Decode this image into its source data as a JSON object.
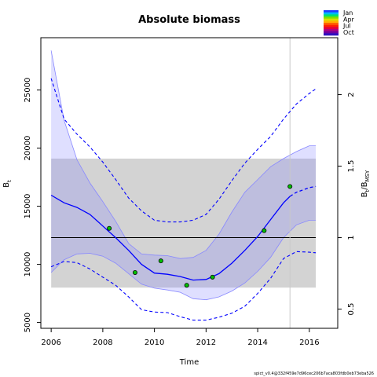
{
  "chart_data": {
    "type": "line",
    "title": "Absolute biomass",
    "xlabel": "Time",
    "ylabel_left": "B",
    "ylabel_left_sub": "t",
    "ylabel_right_parts": [
      "B",
      "t",
      "/B",
      "MSY"
    ],
    "xlim": [
      2005.6,
      2017.1
    ],
    "ylim": [
      4500,
      29500
    ],
    "x_ticks": [
      "2006",
      "2008",
      "2010",
      "2012",
      "2014",
      "2016"
    ],
    "x_tick_values": [
      2006,
      2008,
      2010,
      2012,
      2014,
      2016
    ],
    "y_ticks": [
      "5000",
      "10000",
      "15000",
      "20000",
      "25000"
    ],
    "y_tick_values": [
      5000,
      10000,
      15000,
      20000,
      25000
    ],
    "y2_ticks": [
      "0.5",
      "1",
      "1.5",
      "2"
    ],
    "y2_tick_values": [
      0.5,
      1,
      1.5,
      2
    ],
    "bmsy": 12300,
    "bmsy_band": [
      8000,
      19100
    ],
    "vline_x": 2015.25,
    "estimate": {
      "x": [
        2006,
        2006.5,
        2007,
        2007.5,
        2008,
        2008.5,
        2009,
        2009.5,
        2010,
        2010.5,
        2011,
        2011.5,
        2012,
        2012.5,
        2013,
        2013.5,
        2014,
        2014.5,
        2015,
        2015.25
      ],
      "y": [
        15950,
        15300,
        14900,
        14300,
        13300,
        12300,
        11200,
        10000,
        9250,
        9150,
        8950,
        8650,
        8700,
        9200,
        10100,
        11200,
        12400,
        13850,
        15300,
        15850
      ]
    },
    "estimate_forecast": {
      "x": [
        2015.25,
        2015.5,
        2016,
        2016.25
      ],
      "y": [
        15850,
        16200,
        16600,
        16700
      ]
    },
    "ci_lower_solid": {
      "x": [
        2006,
        2006.5,
        2007,
        2007.5,
        2008,
        2008.5,
        2009,
        2009.5,
        2010,
        2010.5,
        2011,
        2011.5,
        2012,
        2012.5,
        2013,
        2013.5,
        2014,
        2014.5,
        2015,
        2015.5,
        2016,
        2016.25
      ],
      "y": [
        9300,
        10400,
        10900,
        10950,
        10700,
        10100,
        9200,
        8300,
        7950,
        7800,
        7600,
        7050,
        6950,
        7200,
        7700,
        8400,
        9400,
        10600,
        12300,
        13400,
        13800,
        13800
      ]
    },
    "ci_upper_solid": {
      "x": [
        2006,
        2006.5,
        2007,
        2007.5,
        2008,
        2008.5,
        2009,
        2009.5,
        2010,
        2010.5,
        2011,
        2011.5,
        2012,
        2012.5,
        2013,
        2013.5,
        2014,
        2014.5,
        2015,
        2015.5,
        2016,
        2016.25
      ],
      "y": [
        28400,
        22400,
        19000,
        17000,
        15400,
        13700,
        11800,
        10900,
        10800,
        10750,
        10500,
        10600,
        11200,
        12600,
        14500,
        16200,
        17300,
        18400,
        19100,
        19700,
        20200,
        20200
      ]
    },
    "ci_lower_dashed": {
      "x": [
        2006,
        2006.5,
        2007,
        2007.5,
        2008,
        2008.5,
        2009,
        2009.5,
        2010,
        2010.5,
        2011,
        2011.5,
        2012,
        2012.5,
        2013,
        2013.5,
        2014,
        2014.5,
        2015,
        2015.5,
        2016,
        2016.25
      ],
      "y": [
        9800,
        10250,
        10150,
        9600,
        8900,
        8200,
        7200,
        6100,
        5900,
        5850,
        5500,
        5200,
        5200,
        5450,
        5800,
        6400,
        7500,
        8800,
        10500,
        11100,
        11050,
        11000
      ]
    },
    "ci_upper_dashed": {
      "x": [
        2006,
        2006.5,
        2007,
        2007.5,
        2008,
        2008.5,
        2009,
        2009.5,
        2010,
        2010.5,
        2011,
        2011.5,
        2012,
        2012.5,
        2013,
        2013.5,
        2014,
        2014.5,
        2015,
        2015.5,
        2016,
        2016.25
      ],
      "y": [
        26000,
        22500,
        21200,
        20100,
        18800,
        17300,
        15700,
        14600,
        13800,
        13650,
        13650,
        13800,
        14300,
        15600,
        17200,
        18700,
        19900,
        21000,
        22500,
        23800,
        24700,
        25100
      ]
    },
    "observations": {
      "x": [
        2008.25,
        2009.25,
        2010.25,
        2011.25,
        2012.25,
        2014.25,
        2015.25
      ],
      "y": [
        13100,
        9300,
        10300,
        8200,
        8900,
        12900,
        16700
      ]
    },
    "legend": {
      "labels": [
        "Jan",
        "Apr",
        "Jul",
        "Oct"
      ],
      "colors": [
        "#1f3bff",
        "#00b8ff",
        "#00e070",
        "#7ce000",
        "#d8e000",
        "#ffb000",
        "#ff6000",
        "#ff2000",
        "#e00040",
        "#b00080",
        "#7000a0",
        "#3010c0"
      ]
    },
    "colors": {
      "estimate": "#0000ff",
      "ci_fill": "#8080ff",
      "ci_fill_opacity": 0.25,
      "band": "#d3d3d3",
      "bmsy_line": "#000000",
      "vline": "#c8c8c8",
      "obs_fill": "#00c000"
    },
    "footnote": "spict_v0.4@332f459e7d96cec206b7aca803fdb0eb73eba526"
  }
}
